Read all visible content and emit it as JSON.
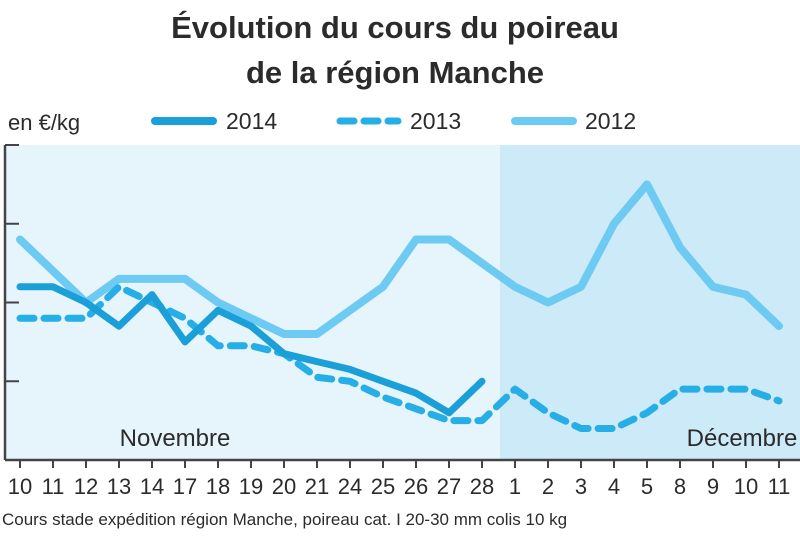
{
  "chart_data": {
    "type": "line",
    "title_line1": "Évolution du cours du poireau",
    "title_line2": "de la région Manche",
    "ylabel": "en €/kg",
    "source": "Cours stade expédition région Manche, poireau cat. I 20-30 mm colis 10 kg",
    "months": [
      {
        "label": "Novembre",
        "start_index": 0,
        "end_index": 14
      },
      {
        "label": "Décembre",
        "start_index": 15,
        "end_index": 23
      }
    ],
    "categories": [
      "10",
      "11",
      "12",
      "13",
      "14",
      "17",
      "18",
      "19",
      "20",
      "21",
      "24",
      "25",
      "26",
      "27",
      "28",
      "1",
      "2",
      "3",
      "4",
      "5",
      "8",
      "9",
      "10",
      "11"
    ],
    "ylim": [
      0,
      4
    ],
    "y_gridlines": [
      1,
      2,
      3
    ],
    "series": [
      {
        "name": "2014",
        "style": "solid-thick",
        "color": "#1a9fd9",
        "values": [
          2.2,
          2.2,
          2.0,
          1.7,
          2.1,
          1.5,
          1.9,
          1.7,
          1.35,
          1.25,
          1.15,
          1.0,
          0.85,
          0.6,
          1.0,
          null,
          null,
          null,
          null,
          null,
          null,
          null,
          null,
          null
        ]
      },
      {
        "name": "2013",
        "style": "dashed",
        "color": "#26aee6",
        "values": [
          1.8,
          1.8,
          1.8,
          2.2,
          2.0,
          1.8,
          1.45,
          1.45,
          1.35,
          1.05,
          1.0,
          0.8,
          0.65,
          0.5,
          0.5,
          0.9,
          0.6,
          0.4,
          0.4,
          0.6,
          0.9,
          0.9,
          0.9,
          0.75
        ]
      },
      {
        "name": "2012",
        "style": "solid-light",
        "color": "#6dcaf2",
        "values": [
          2.8,
          2.4,
          2.0,
          2.3,
          2.3,
          2.3,
          2.0,
          1.8,
          1.6,
          1.6,
          1.9,
          2.2,
          2.8,
          2.8,
          2.5,
          2.2,
          2.0,
          2.2,
          3.0,
          3.5,
          2.7,
          2.2,
          2.1,
          1.7
        ]
      }
    ],
    "grid": true,
    "legend_placement": "top"
  }
}
